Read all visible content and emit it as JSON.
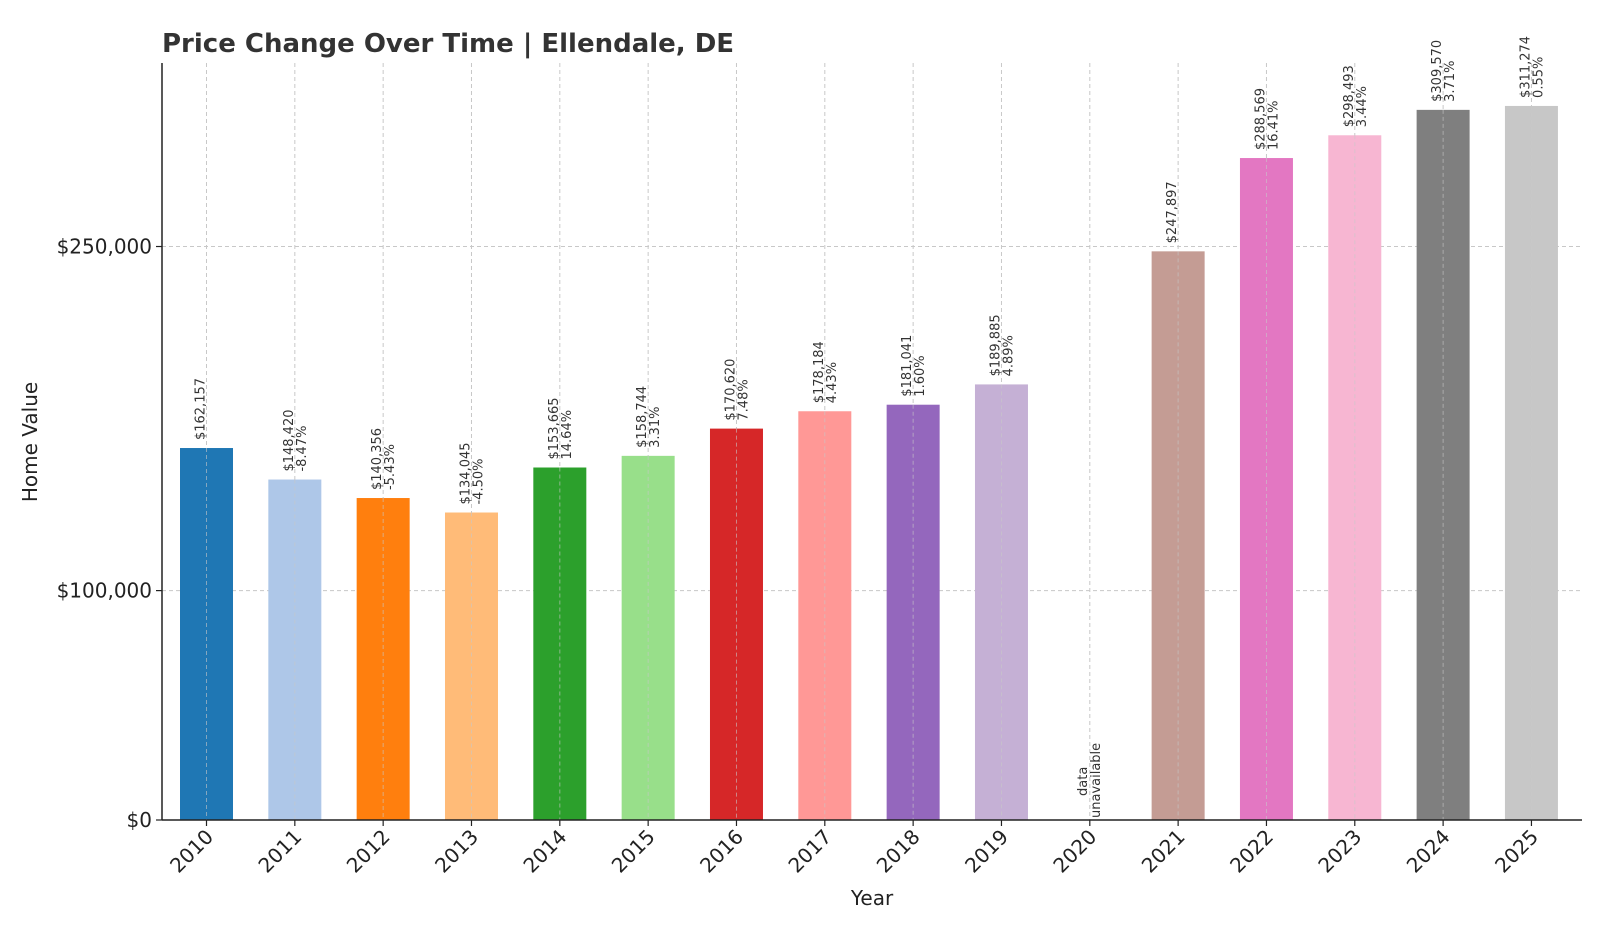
{
  "chart_data": {
    "type": "bar",
    "title": "Price Change Over Time | Ellendale, DE",
    "xlabel": "Year",
    "ylabel": "Home Value",
    "ylim": [
      0,
      330000
    ],
    "yticks": [
      {
        "value": 0,
        "label": "$0"
      },
      {
        "value": 100000,
        "label": "$100,000"
      },
      {
        "value": 250000,
        "label": "$250,000"
      }
    ],
    "grid": true,
    "categories": [
      "2010",
      "2011",
      "2012",
      "2013",
      "2014",
      "2015",
      "2016",
      "2017",
      "2018",
      "2019",
      "2020",
      "2021",
      "2022",
      "2023",
      "2024",
      "2025"
    ],
    "values": [
      162157,
      148420,
      140356,
      134045,
      153665,
      158744,
      170620,
      178184,
      181041,
      189885,
      null,
      247897,
      288569,
      298493,
      309570,
      311274
    ],
    "value_labels": [
      "$162,157",
      "$148,420",
      "$140,356",
      "$134,045",
      "$153,665",
      "$158,744",
      "$170,620",
      "$178,184",
      "$181,041",
      "$189,885",
      "data",
      "$247,897",
      "$288,569",
      "$298,493",
      "$309,570",
      "$311,274"
    ],
    "change_labels": [
      "",
      "-8.47%",
      "-5.43%",
      "-4.50%",
      "14.64%",
      "3.31%",
      "7.48%",
      "4.43%",
      "1.60%",
      "4.89%",
      "unavailable",
      "",
      "16.41%",
      "3.44%",
      "3.71%",
      "0.55%"
    ],
    "colors": [
      "#1f77b4",
      "#aec7e8",
      "#ff7f0e",
      "#ffbb78",
      "#2ca02c",
      "#98df8a",
      "#d62728",
      "#ff9896",
      "#9467bd",
      "#c5b0d5",
      "#8c564b",
      "#c49c94",
      "#e377c2",
      "#f7b6d2",
      "#7f7f7f",
      "#c7c7c7"
    ]
  }
}
